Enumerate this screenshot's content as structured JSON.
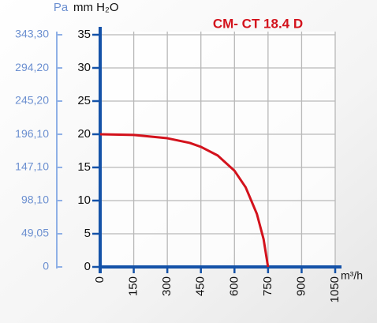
{
  "chart_data": {
    "type": "line",
    "title": "CM- CT 18.4 D",
    "y_label": "mm H₂O",
    "y2_label": "Pa",
    "x_label": "m³/h",
    "x": [
      0,
      150,
      300,
      400,
      450,
      525,
      600,
      650,
      700,
      730,
      750
    ],
    "values": [
      20,
      19.9,
      19.4,
      18.7,
      18.1,
      16.8,
      14.5,
      12,
      8,
      4.2,
      0
    ],
    "color": "#d3121c",
    "xlim": [
      0,
      1050
    ],
    "xticks": [
      0,
      150,
      300,
      450,
      600,
      750,
      900,
      1050
    ],
    "ylim": [
      0,
      35
    ],
    "yticks": [
      0,
      5,
      10,
      15,
      20,
      25,
      30,
      35
    ],
    "y2lim": [
      0,
      343.3
    ],
    "y2ticks": [
      0,
      {
        "value": 49.05,
        "label": "49,05"
      },
      {
        "value": 98.1,
        "label": "98,10"
      },
      {
        "value": 147.1,
        "label": "147,10"
      },
      {
        "value": 196.1,
        "label": "196,10"
      },
      {
        "value": 245.2,
        "label": "245,20"
      },
      {
        "value": 294.2,
        "label": "294,20"
      },
      {
        "value": 343.3,
        "label": "343,30"
      }
    ],
    "grid": true
  }
}
